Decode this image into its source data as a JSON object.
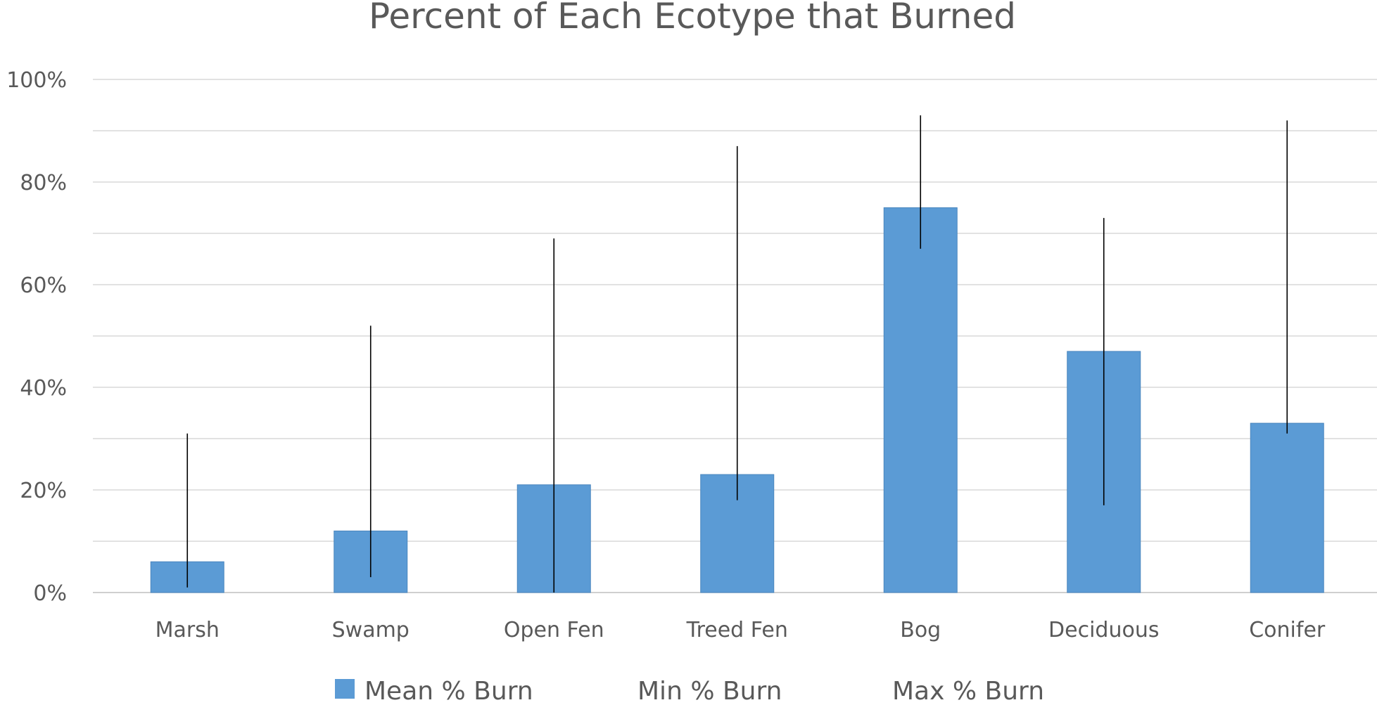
{
  "chart_data": {
    "type": "bar",
    "title": "Percent of Each Ecotype that Burned",
    "xlabel": "",
    "ylabel": "",
    "categories": [
      "Marsh",
      "Swamp",
      "Open Fen",
      "Treed Fen",
      "Bog",
      "Deciduous",
      "Conifer"
    ],
    "series": [
      {
        "name": "Mean % Burn",
        "values": [
          6,
          12,
          21,
          23,
          75,
          47,
          33
        ]
      },
      {
        "name": "Min % Burn",
        "values": [
          1,
          3,
          0,
          18,
          67,
          17,
          31
        ]
      },
      {
        "name": "Max % Burn",
        "values": [
          31,
          52,
          69,
          87,
          93,
          73,
          92
        ]
      }
    ],
    "ylim": [
      0,
      100
    ],
    "yticks": [
      "0%",
      "20%",
      "40%",
      "60%",
      "80%",
      "100%"
    ],
    "ytick_values": [
      0,
      20,
      40,
      60,
      80,
      100
    ],
    "minor_gridlines": [
      10,
      30,
      50,
      70,
      90
    ],
    "grid": true,
    "legend_position": "bottom",
    "colors": {
      "bar": "#5b9bd5",
      "bar_border": "#4a86be",
      "error_line": "#000000",
      "text": "#595959",
      "grid": "#d9d9d9"
    }
  }
}
